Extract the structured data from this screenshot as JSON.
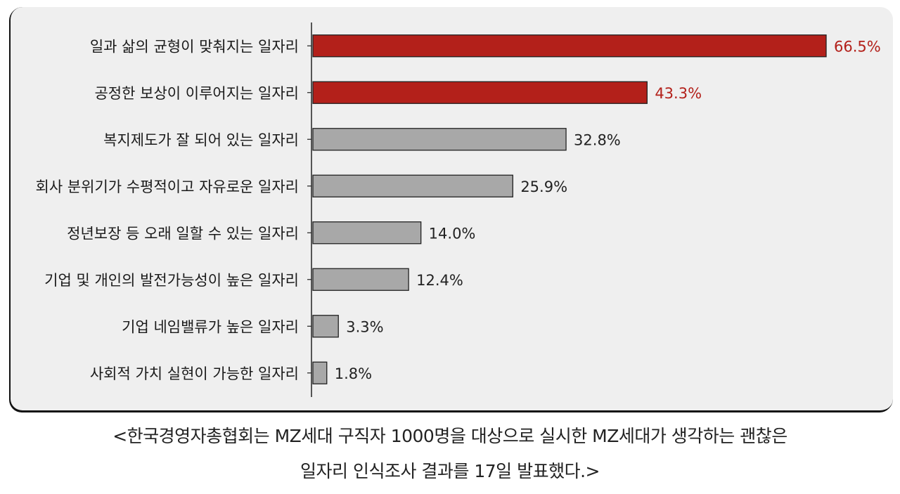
{
  "chart_data": {
    "type": "bar",
    "orientation": "horizontal",
    "categories": [
      "일과 삶의 균형이 맞춰지는 일자리",
      "공정한 보상이 이루어지는 일자리",
      "복지제도가 잘 되어 있는 일자리",
      "회사 분위기가 수평적이고 자유로운 일자리",
      "정년보장 등 오래 일할 수 있는 일자리",
      "기업 및 개인의 발전가능성이 높은 일자리",
      "기업 네임밸류가 높은 일자리",
      "사회적 가치 실현이 가능한 일자리"
    ],
    "values": [
      66.5,
      43.3,
      32.8,
      25.9,
      14.0,
      12.4,
      3.3,
      1.8
    ],
    "value_labels": [
      "66.5%",
      "43.3%",
      "32.8%",
      "25.9%",
      "14.0%",
      "12.4%",
      "3.3%",
      "1.8%"
    ],
    "highlight": [
      true,
      true,
      false,
      false,
      false,
      false,
      false,
      false
    ],
    "xlim": [
      0,
      70
    ],
    "colors": {
      "highlight": "#b3201a",
      "default": "#a8a8a8",
      "highlight_label": "#b3201a",
      "default_label": "#222222"
    },
    "grid": false,
    "title": "",
    "xlabel": "",
    "ylabel": ""
  },
  "caption": {
    "line1": "<한국경영자총협회는 MZ세대 구직자 1000명을 대상으로 실시한 MZ세대가 생각하는 괜찮은",
    "line2": "일자리 인식조사 결과를 17일 발표했다.>"
  }
}
